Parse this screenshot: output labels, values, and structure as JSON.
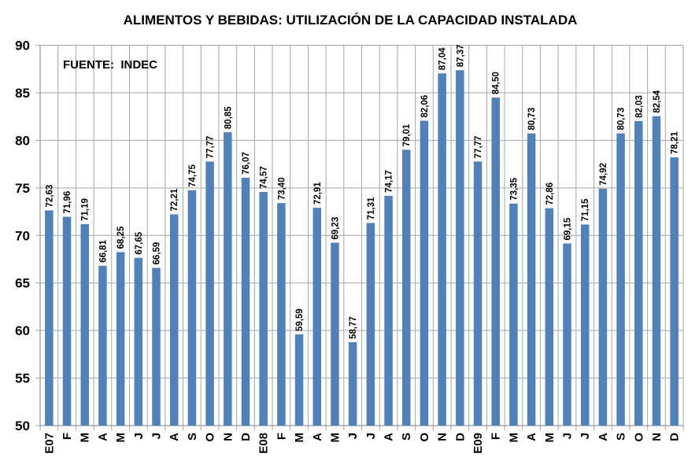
{
  "chart_data": {
    "type": "bar",
    "title": "ALIMENTOS Y BEBIDAS: UTILIZACIÓN DE LA CAPACIDAD INSTALADA",
    "annotation": "FUENTE:  INDEC",
    "xlabel": "",
    "ylabel": "",
    "ylim": [
      50,
      90
    ],
    "yticks": [
      50,
      55,
      60,
      65,
      70,
      75,
      80,
      85,
      90
    ],
    "grid": true,
    "bar_color": "#4F81BD",
    "categories": [
      "E07",
      "F",
      "M",
      "A",
      "M",
      "J",
      "J",
      "A",
      "S",
      "O",
      "N",
      "D",
      "E08",
      "F",
      "M",
      "A",
      "M",
      "J",
      "J",
      "A",
      "S",
      "O",
      "N",
      "D",
      "E09",
      "F",
      "M",
      "A",
      "M",
      "J",
      "J",
      "A",
      "S",
      "O",
      "N",
      "D"
    ],
    "values": [
      72.63,
      71.96,
      71.19,
      66.81,
      68.25,
      67.65,
      66.59,
      72.21,
      74.75,
      77.77,
      80.85,
      76.07,
      74.57,
      73.4,
      59.59,
      72.91,
      69.23,
      58.77,
      71.31,
      74.17,
      79.01,
      82.06,
      87.04,
      87.37,
      77.77,
      84.5,
      73.35,
      80.73,
      72.86,
      69.15,
      71.15,
      74.92,
      80.73,
      82.03,
      82.54,
      78.21
    ],
    "data_labels": [
      "72,63",
      "71,96",
      "71,19",
      "66,81",
      "68,25",
      "67,65",
      "66,59",
      "72,21",
      "74,75",
      "77,77",
      "80,85",
      "76,07",
      "74,57",
      "73,40",
      "59,59",
      "72,91",
      "69,23",
      "58,77",
      "71,31",
      "74,17",
      "79,01",
      "82,06",
      "87,04",
      "87,37",
      "77,77",
      "84,50",
      "73,35",
      "80,73",
      "72,86",
      "69,15",
      "71,15",
      "74,92",
      "80,73",
      "82,03",
      "82,54",
      "78,21"
    ]
  }
}
